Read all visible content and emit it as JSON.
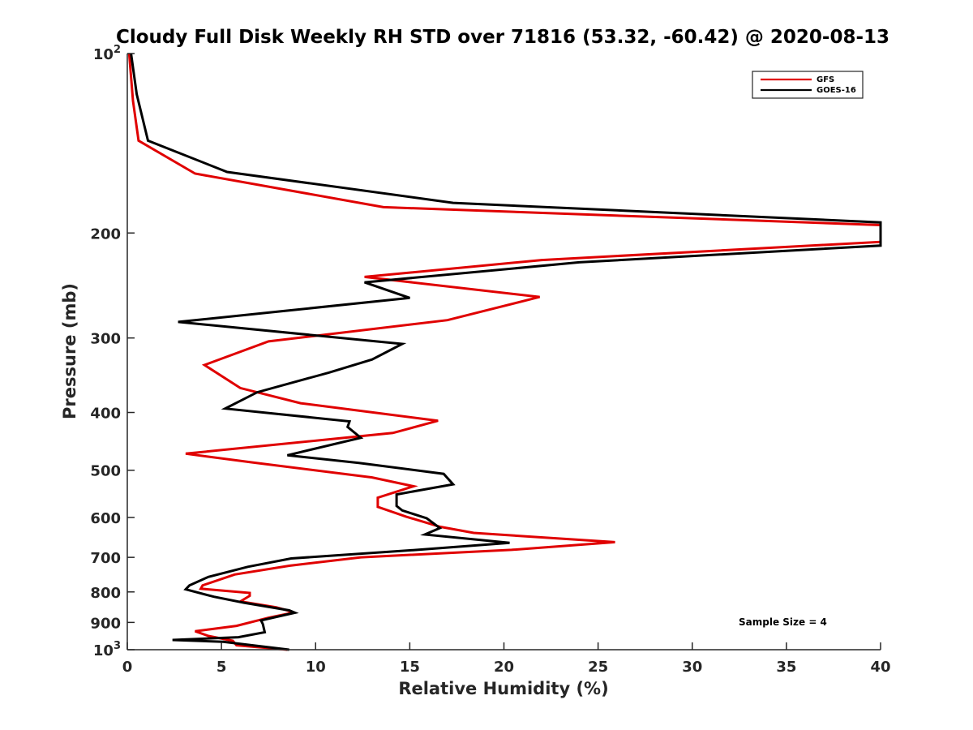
{
  "chart_data": {
    "type": "line",
    "title": "Cloudy Full Disk Weekly RH STD over 71816 (53.32, -60.42) @ 2020-08-13",
    "xlabel": "Relative Humidity (%)",
    "ylabel": "Pressure (mb)",
    "xlim": [
      0,
      40
    ],
    "ylim": [
      100,
      1000
    ],
    "yscale": "log",
    "y_reversed": true,
    "grid": false,
    "legend_position": "top-right",
    "xticks": [
      "0",
      "5",
      "10",
      "15",
      "20",
      "25",
      "30",
      "35",
      "40"
    ],
    "yticks": [
      {
        "value": 100,
        "base": "10",
        "exp": "2"
      },
      {
        "value": 200,
        "label": "200"
      },
      {
        "value": 300,
        "label": "300"
      },
      {
        "value": 400,
        "label": "400"
      },
      {
        "value": 500,
        "label": "500"
      },
      {
        "value": 600,
        "label": "600"
      },
      {
        "value": 700,
        "label": "700"
      },
      {
        "value": 800,
        "label": "800"
      },
      {
        "value": 900,
        "label": "900"
      },
      {
        "value": 1000,
        "base": "10",
        "exp": "3"
      }
    ],
    "annotation": "Sample Size = 4",
    "series": [
      {
        "name": "GFS",
        "color": "#e00000",
        "points": [
          [
            0.1,
            100
          ],
          [
            0.3,
            120
          ],
          [
            0.6,
            140
          ],
          [
            3.6,
            159
          ],
          [
            13.6,
            181
          ],
          [
            40,
            194
          ],
          [
            40,
            207
          ],
          [
            22,
            222
          ],
          [
            12.6,
            237
          ],
          [
            21.9,
            256
          ],
          [
            17,
            280
          ],
          [
            7.5,
            304
          ],
          [
            4.1,
            333
          ],
          [
            6,
            364
          ],
          [
            9.2,
            386
          ],
          [
            16.5,
            413
          ],
          [
            14.1,
            433
          ],
          [
            3.1,
            469
          ],
          [
            6.6,
            485
          ],
          [
            13,
            514
          ],
          [
            15.2,
            532
          ],
          [
            13.3,
            556
          ],
          [
            13.3,
            576
          ],
          [
            14.8,
            598
          ],
          [
            16.6,
            622
          ],
          [
            18.4,
            637
          ],
          [
            25.9,
            660
          ],
          [
            20.4,
            680
          ],
          [
            12.4,
            700
          ],
          [
            8.6,
            723
          ],
          [
            5.7,
            748
          ],
          [
            4,
            780
          ],
          [
            3.9,
            790
          ],
          [
            6.5,
            803
          ],
          [
            6.5,
            812
          ],
          [
            6,
            830
          ],
          [
            7.9,
            849
          ],
          [
            8.5,
            859
          ],
          [
            8.8,
            867
          ],
          [
            7.5,
            884
          ],
          [
            5.8,
            912
          ],
          [
            3.6,
            931
          ],
          [
            4.3,
            948
          ],
          [
            5.6,
            966
          ],
          [
            5.8,
            983
          ],
          [
            8.5,
            1000
          ]
        ]
      },
      {
        "name": "GOES-16",
        "color": "#000000",
        "points": [
          [
            0.2,
            100
          ],
          [
            0.5,
            117
          ],
          [
            1.1,
            140
          ],
          [
            5.3,
            158
          ],
          [
            17.3,
            178
          ],
          [
            40,
            192
          ],
          [
            40,
            210
          ],
          [
            24,
            224
          ],
          [
            12.6,
            242
          ],
          [
            15,
            257
          ],
          [
            2.7,
            282
          ],
          [
            14.6,
            307
          ],
          [
            13,
            326
          ],
          [
            10.7,
            343
          ],
          [
            6.9,
            370
          ],
          [
            5.2,
            394
          ],
          [
            11.8,
            414
          ],
          [
            11.7,
            423
          ],
          [
            12.4,
            441
          ],
          [
            8.5,
            472
          ],
          [
            12.3,
            486
          ],
          [
            16.8,
            507
          ],
          [
            17.3,
            528
          ],
          [
            14.3,
            549
          ],
          [
            14.3,
            574
          ],
          [
            14.6,
            584
          ],
          [
            15.9,
            602
          ],
          [
            16.6,
            625
          ],
          [
            15.8,
            641
          ],
          [
            20.3,
            662
          ],
          [
            15.4,
            680
          ],
          [
            8.7,
            703
          ],
          [
            6.4,
            726
          ],
          [
            4.3,
            755
          ],
          [
            3.3,
            780
          ],
          [
            3.1,
            792
          ],
          [
            4.6,
            815
          ],
          [
            6.2,
            834
          ],
          [
            8.6,
            859
          ],
          [
            8.9,
            867
          ],
          [
            7.1,
            893
          ],
          [
            7.2,
            906
          ],
          [
            7.3,
            935
          ],
          [
            5.9,
            953
          ],
          [
            2.4,
            963
          ],
          [
            5.1,
            970
          ],
          [
            8.6,
            1000
          ]
        ]
      }
    ]
  }
}
